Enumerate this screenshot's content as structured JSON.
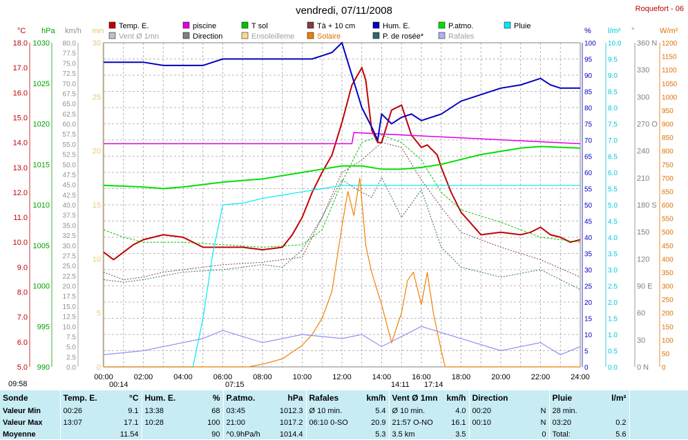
{
  "page": {
    "title": "vendredi, 07/11/2008",
    "station": "Roquefort - 06"
  },
  "legend": [
    {
      "label": "Temp. E.",
      "color": "#c00000"
    },
    {
      "label": "piscine",
      "color": "#e000e0"
    },
    {
      "label": "T sol",
      "color": "#00c000"
    },
    {
      "label": "Tà + 10 cm",
      "color": "#804040"
    },
    {
      "label": "Hum. E.",
      "color": "#0000c0"
    },
    {
      "label": "P.atmo.",
      "color": "#00e000"
    },
    {
      "label": "Pluie",
      "color": "#00e8f8"
    },
    {
      "label": "Vent Ø 1mn",
      "color": "#c0c0c0"
    },
    {
      "label": "Direction",
      "color": "#808080"
    },
    {
      "label": "Ensoleilleme",
      "color": "#f8d890"
    },
    {
      "label": "Solaire",
      "color": "#f08000"
    },
    {
      "label": "P. de rosée*",
      "color": "#306868"
    },
    {
      "label": "Rafales",
      "color": "#b0b0f8"
    }
  ],
  "axes": {
    "temp": {
      "unit": "°C",
      "ticks": [
        "18.0",
        "17.0",
        "16.0",
        "15.0",
        "14.0",
        "13.0",
        "12.0",
        "11.0",
        "10.0",
        "9.0",
        "8.0",
        "7.0",
        "6.0",
        "5.0"
      ],
      "color": "#c00000"
    },
    "press": {
      "unit": "hPa",
      "ticks": [
        "1030",
        "1025",
        "1020",
        "1015",
        "1010",
        "1005",
        "1000",
        "995",
        "990"
      ],
      "color": "#00a000"
    },
    "wind": {
      "unit": "km/h",
      "ticks": [
        "80.0",
        "77.5",
        "75.0",
        "72.5",
        "70.0",
        "67.5",
        "65.0",
        "62.5",
        "60.0",
        "57.5",
        "55.0",
        "52.5",
        "50.0",
        "47.5",
        "45.0",
        "42.5",
        "40.0",
        "37.5",
        "35.0",
        "32.5",
        "30.0",
        "27.5",
        "25.0",
        "22.5",
        "20.0",
        "17.5",
        "15.0",
        "12.5",
        "10.0",
        "7.5",
        "5.0",
        "2.5",
        "0.0"
      ],
      "color": "#909090"
    },
    "min": {
      "unit": "min",
      "ticks": [
        "30",
        "25",
        "20",
        "15",
        "10",
        "5",
        "0"
      ],
      "color": "#e8c878"
    },
    "hum": {
      "unit": "%",
      "ticks": [
        "100",
        "95",
        "90",
        "85",
        "80",
        "75",
        "70",
        "65",
        "60",
        "55",
        "50",
        "45",
        "40",
        "35",
        "30",
        "25",
        "20",
        "15",
        "10",
        "5",
        "0"
      ],
      "color": "#0000c0"
    },
    "rain": {
      "unit": "l/m²",
      "ticks": [
        "10.0",
        "9.5",
        "9.0",
        "8.5",
        "8.0",
        "7.5",
        "7.0",
        "6.5",
        "6.0",
        "5.5",
        "5.0",
        "4.5",
        "4.0",
        "3.5",
        "3.0",
        "2.5",
        "2.0",
        "1.5",
        "1.0",
        "0.5",
        "0.0"
      ],
      "color": "#00c8d8"
    },
    "dir": {
      "unit": "°",
      "ticks": [
        "360 N",
        "330",
        "300",
        "270 O",
        "240",
        "210",
        "180 S",
        "150",
        "120",
        "90 E",
        "60",
        "30",
        "0 N"
      ],
      "color": "#808080"
    },
    "solar": {
      "unit": "W/m²",
      "ticks": [
        "1200",
        "1150",
        "1100",
        "1050",
        "1000",
        "950",
        "900",
        "850",
        "800",
        "750",
        "700",
        "650",
        "600",
        "550",
        "500",
        "450",
        "400",
        "350",
        "300",
        "250",
        "200",
        "150",
        "100",
        "50",
        "0"
      ],
      "color": "#e07000"
    },
    "time": {
      "ticks": [
        "00:00",
        "02:00",
        "04:00",
        "06:00",
        "08:00",
        "10:00",
        "12:00",
        "14:00",
        "16:00",
        "18:00",
        "20:00",
        "22:00",
        "24:00"
      ]
    }
  },
  "events": {
    "sunrise_time": "07:15",
    "sunset_time": "17:14",
    "moonrise_time": "09:58",
    "moonset_time": "14:11",
    "moon_extra": "00:14"
  },
  "chart_data": {
    "type": "line",
    "x_unit": "hours",
    "series": [
      {
        "name": "Temp. E.",
        "axis": "temp",
        "x": [
          0,
          0.5,
          1,
          1.5,
          2,
          3,
          4,
          4.5,
          5,
          6,
          7,
          8,
          9,
          9.5,
          10,
          10.5,
          11,
          11.5,
          12,
          12.5,
          13,
          13.2,
          13.5,
          13.8,
          14,
          14.5,
          15,
          15.5,
          16,
          16.3,
          16.8,
          17,
          17.5,
          18,
          19,
          20,
          21,
          21.5,
          22,
          22.5,
          23,
          23.5,
          24
        ],
        "y": [
          9.6,
          9.3,
          9.6,
          9.9,
          10.1,
          10.3,
          10.2,
          10.0,
          9.8,
          9.8,
          9.8,
          9.7,
          9.8,
          10.3,
          11.0,
          12.0,
          12.8,
          13.5,
          14.8,
          16.3,
          17.0,
          16.5,
          14.5,
          14.0,
          14.0,
          15.3,
          15.5,
          14.3,
          13.8,
          13.9,
          13.5,
          13.0,
          12.0,
          11.2,
          10.3,
          10.4,
          10.3,
          10.4,
          10.6,
          10.3,
          10.2,
          10.0,
          10.1
        ]
      },
      {
        "name": "piscine",
        "axis": "temp",
        "x": [
          0,
          12.5,
          12.6,
          24
        ],
        "y": [
          13.95,
          13.95,
          14.4,
          13.95
        ]
      },
      {
        "name": "T sol",
        "axis": "temp",
        "x": [
          0,
          1,
          2,
          4,
          6,
          8,
          10,
          11,
          12,
          13,
          14,
          15,
          16,
          17,
          18,
          20,
          22,
          24
        ],
        "y": [
          10.5,
          10.2,
          10.0,
          10.0,
          9.9,
          9.8,
          9.9,
          10.5,
          12.4,
          14.0,
          14.3,
          14.0,
          13.3,
          12.0,
          11.3,
          10.8,
          10.2,
          10.0
        ]
      },
      {
        "name": "Tà + 10 cm",
        "axis": "temp",
        "x": [
          0,
          1,
          2,
          3,
          4,
          6,
          8,
          10,
          11,
          12,
          13,
          14,
          15,
          16,
          17,
          18,
          20,
          22,
          24
        ],
        "y": [
          8.8,
          8.5,
          8.6,
          8.8,
          8.9,
          9.1,
          9.2,
          9.4,
          11.0,
          12.8,
          13.3,
          14.0,
          13.8,
          12.5,
          11.4,
          10.4,
          9.8,
          9.3,
          8.6
        ]
      },
      {
        "name": "P. de rosée*",
        "axis": "temp",
        "x": [
          0,
          1,
          2,
          4,
          6,
          8,
          9,
          10,
          11,
          12,
          13,
          13.5,
          14,
          15,
          16,
          17,
          18,
          20,
          22,
          24
        ],
        "y": [
          8.5,
          8.4,
          8.5,
          8.8,
          8.9,
          9.1,
          9.0,
          9.7,
          11.0,
          12.5,
          12.0,
          11.8,
          12.6,
          11.0,
          12.1,
          9.8,
          9.0,
          8.6,
          8.9,
          8.1
        ]
      },
      {
        "name": "Hum. E.",
        "axis": "hum",
        "x": [
          0,
          2,
          3,
          5,
          6,
          7,
          8,
          9,
          10,
          10.5,
          11,
          11.5,
          12,
          13,
          13.5,
          13.8,
          14,
          14.5,
          15,
          15.5,
          16,
          17,
          18,
          19,
          20,
          21,
          21.5,
          22,
          22.5,
          23,
          24
        ],
        "y": [
          94,
          94,
          93,
          93,
          95,
          95,
          95,
          95,
          95,
          95,
          96,
          97,
          100,
          80,
          74,
          70,
          78,
          75,
          77,
          78,
          76,
          78,
          82,
          84,
          86,
          87,
          88,
          89,
          87,
          86,
          86
        ]
      },
      {
        "name": "P.atmo.",
        "axis": "press",
        "x": [
          0,
          2,
          3,
          4,
          5,
          6,
          7,
          8,
          9,
          10,
          11,
          12,
          13,
          14,
          15,
          16,
          17,
          18,
          19,
          20,
          21,
          22,
          23,
          24
        ],
        "y": [
          1012.4,
          1012.2,
          1012.0,
          1012.2,
          1012.5,
          1012.8,
          1013.0,
          1013.2,
          1013.6,
          1014.0,
          1014.4,
          1014.8,
          1014.8,
          1014.4,
          1014.4,
          1014.6,
          1015.0,
          1015.6,
          1016.2,
          1016.6,
          1017.0,
          1017.2,
          1017.1,
          1017.0
        ]
      },
      {
        "name": "Pluie",
        "axis": "rain",
        "x": [
          0,
          4.5,
          5,
          5.5,
          6,
          7,
          8,
          9,
          10,
          11,
          12,
          24
        ],
        "y": [
          0,
          0,
          1.5,
          3.5,
          5.0,
          5.05,
          5.2,
          5.3,
          5.4,
          5.5,
          5.6,
          5.6
        ]
      },
      {
        "name": "Solaire",
        "axis": "solar",
        "x": [
          0,
          7.3,
          8,
          9,
          10,
          10.5,
          11,
          11.5,
          12,
          12.3,
          12.6,
          12.9,
          13.2,
          13.5,
          14,
          14.5,
          15,
          15.3,
          15.6,
          16,
          16.3,
          16.6,
          17,
          17.2,
          24
        ],
        "y": [
          0,
          0,
          10,
          30,
          80,
          120,
          180,
          280,
          520,
          650,
          560,
          700,
          450,
          350,
          230,
          90,
          200,
          320,
          350,
          230,
          350,
          200,
          60,
          0,
          0
        ]
      },
      {
        "name": "Rafales",
        "axis": "wind",
        "x": [
          0,
          2,
          4,
          5,
          6,
          8,
          10,
          12,
          13,
          14,
          16,
          18,
          20,
          22,
          23,
          24
        ],
        "y": [
          3,
          4,
          6,
          7,
          9,
          6,
          8,
          7,
          8,
          5,
          10,
          7,
          4,
          6,
          3,
          5
        ]
      }
    ]
  },
  "stats": {
    "headers": [
      {
        "name": "Sonde",
        "unit": ""
      },
      {
        "name": "Temp. E.",
        "unit": "°C"
      },
      {
        "name": "Hum. E.",
        "unit": "%"
      },
      {
        "name": "P.atmo.",
        "unit": "hPa"
      },
      {
        "name": "Rafales",
        "unit": "km/h"
      },
      {
        "name": "Vent Ø 1mn",
        "unit": "km/h"
      },
      {
        "name": "Direction",
        "unit": ""
      },
      {
        "name": "Pluie",
        "unit": "l/m²"
      }
    ],
    "rows": [
      {
        "label": "Valeur Min",
        "cells": [
          [
            "00:26",
            "9.1"
          ],
          [
            "13:38",
            "68"
          ],
          [
            "03:45",
            "1012.3"
          ],
          [
            "Ø 10 min.",
            "5.4"
          ],
          [
            "Ø 10 min.",
            "4.0"
          ],
          [
            "00:20",
            "N"
          ],
          [
            "28 min.",
            ""
          ]
        ]
      },
      {
        "label": "Valeur Max",
        "cells": [
          [
            "13:07",
            "17.1"
          ],
          [
            "10:28",
            "100"
          ],
          [
            "21:00",
            "1017.2"
          ],
          [
            "06:10 0-SO",
            "20.9"
          ],
          [
            "21:57 O-NO",
            "16.1"
          ],
          [
            "00:10",
            "N"
          ],
          [
            "03:20",
            "0.2"
          ]
        ]
      },
      {
        "label": "Moyenne",
        "cells": [
          [
            "",
            "11.54"
          ],
          [
            "",
            "90"
          ],
          [
            "^0.9hPa/h",
            "1014.4"
          ],
          [
            "",
            "5.3"
          ],
          [
            "3.5 km",
            "3.5"
          ],
          [
            "",
            "0"
          ],
          [
            "Total:",
            "5.6"
          ]
        ]
      }
    ]
  }
}
